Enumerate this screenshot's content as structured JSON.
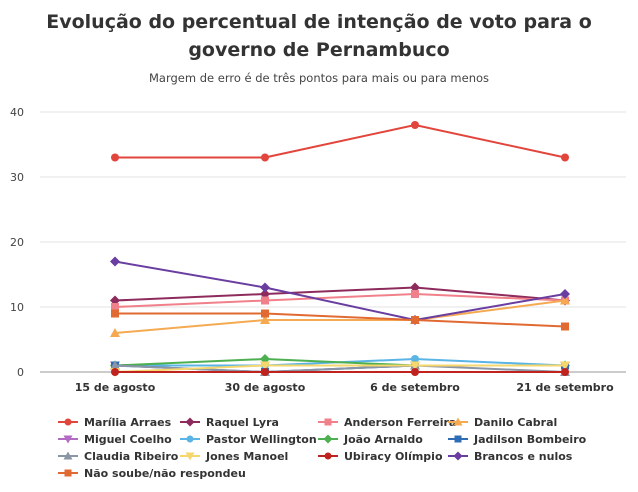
{
  "chart_data": {
    "type": "line",
    "title": "Evolução do percentual de intenção de voto para o governo de Pernambuco",
    "subtitle": "Margem de erro é de três pontos para mais ou para menos",
    "xlabel": "",
    "ylabel": "",
    "ylim": [
      0,
      40
    ],
    "yticks": [
      0,
      10,
      20,
      30,
      40
    ],
    "grid": true,
    "legend": "bottom",
    "categories": [
      "15 de agosto",
      "30 de agosto",
      "6 de setembro",
      "21 de setembro"
    ],
    "series": [
      {
        "name": "Marília Arraes",
        "color": "#e2453b",
        "marker": "circle",
        "values": [
          33,
          33,
          38,
          33
        ]
      },
      {
        "name": "Raquel Lyra",
        "color": "#8e2b5d",
        "marker": "diamond",
        "values": [
          11,
          12,
          13,
          11
        ]
      },
      {
        "name": "Anderson Ferreira",
        "color": "#f0808a",
        "marker": "square",
        "values": [
          10,
          11,
          12,
          11
        ]
      },
      {
        "name": "Danilo Cabral",
        "color": "#f5aa52",
        "marker": "triangle",
        "values": [
          6,
          8,
          8,
          11
        ]
      },
      {
        "name": "Miguel Coelho",
        "color": "#b36ac3",
        "marker": "triangle-down",
        "values": [
          1,
          1,
          1,
          1
        ]
      },
      {
        "name": "Pastor Wellington",
        "color": "#5ab4e5",
        "marker": "circle",
        "values": [
          1,
          1,
          2,
          1
        ]
      },
      {
        "name": "João Arnaldo",
        "color": "#4caf50",
        "marker": "diamond",
        "values": [
          1,
          2,
          1,
          1
        ]
      },
      {
        "name": "Jadilson Bombeiro",
        "color": "#2e6db4",
        "marker": "square",
        "values": [
          1,
          0,
          1,
          1
        ]
      },
      {
        "name": "Claudia Ribeiro",
        "color": "#8a95a6",
        "marker": "triangle",
        "values": [
          1,
          0,
          1,
          0
        ]
      },
      {
        "name": "Jones Manoel",
        "color": "#f5d76e",
        "marker": "triangle-down",
        "values": [
          0,
          1,
          1,
          1
        ]
      },
      {
        "name": "Ubiracy Olímpio",
        "color": "#c0231e",
        "marker": "circle",
        "values": [
          0,
          0,
          0,
          0
        ]
      },
      {
        "name": "Brancos e nulos",
        "color": "#6a3ea1",
        "marker": "diamond",
        "values": [
          17,
          13,
          8,
          12
        ]
      },
      {
        "name": "Não soube/não respondeu",
        "color": "#e06a32",
        "marker": "square",
        "values": [
          9,
          9,
          8,
          7
        ]
      }
    ]
  }
}
